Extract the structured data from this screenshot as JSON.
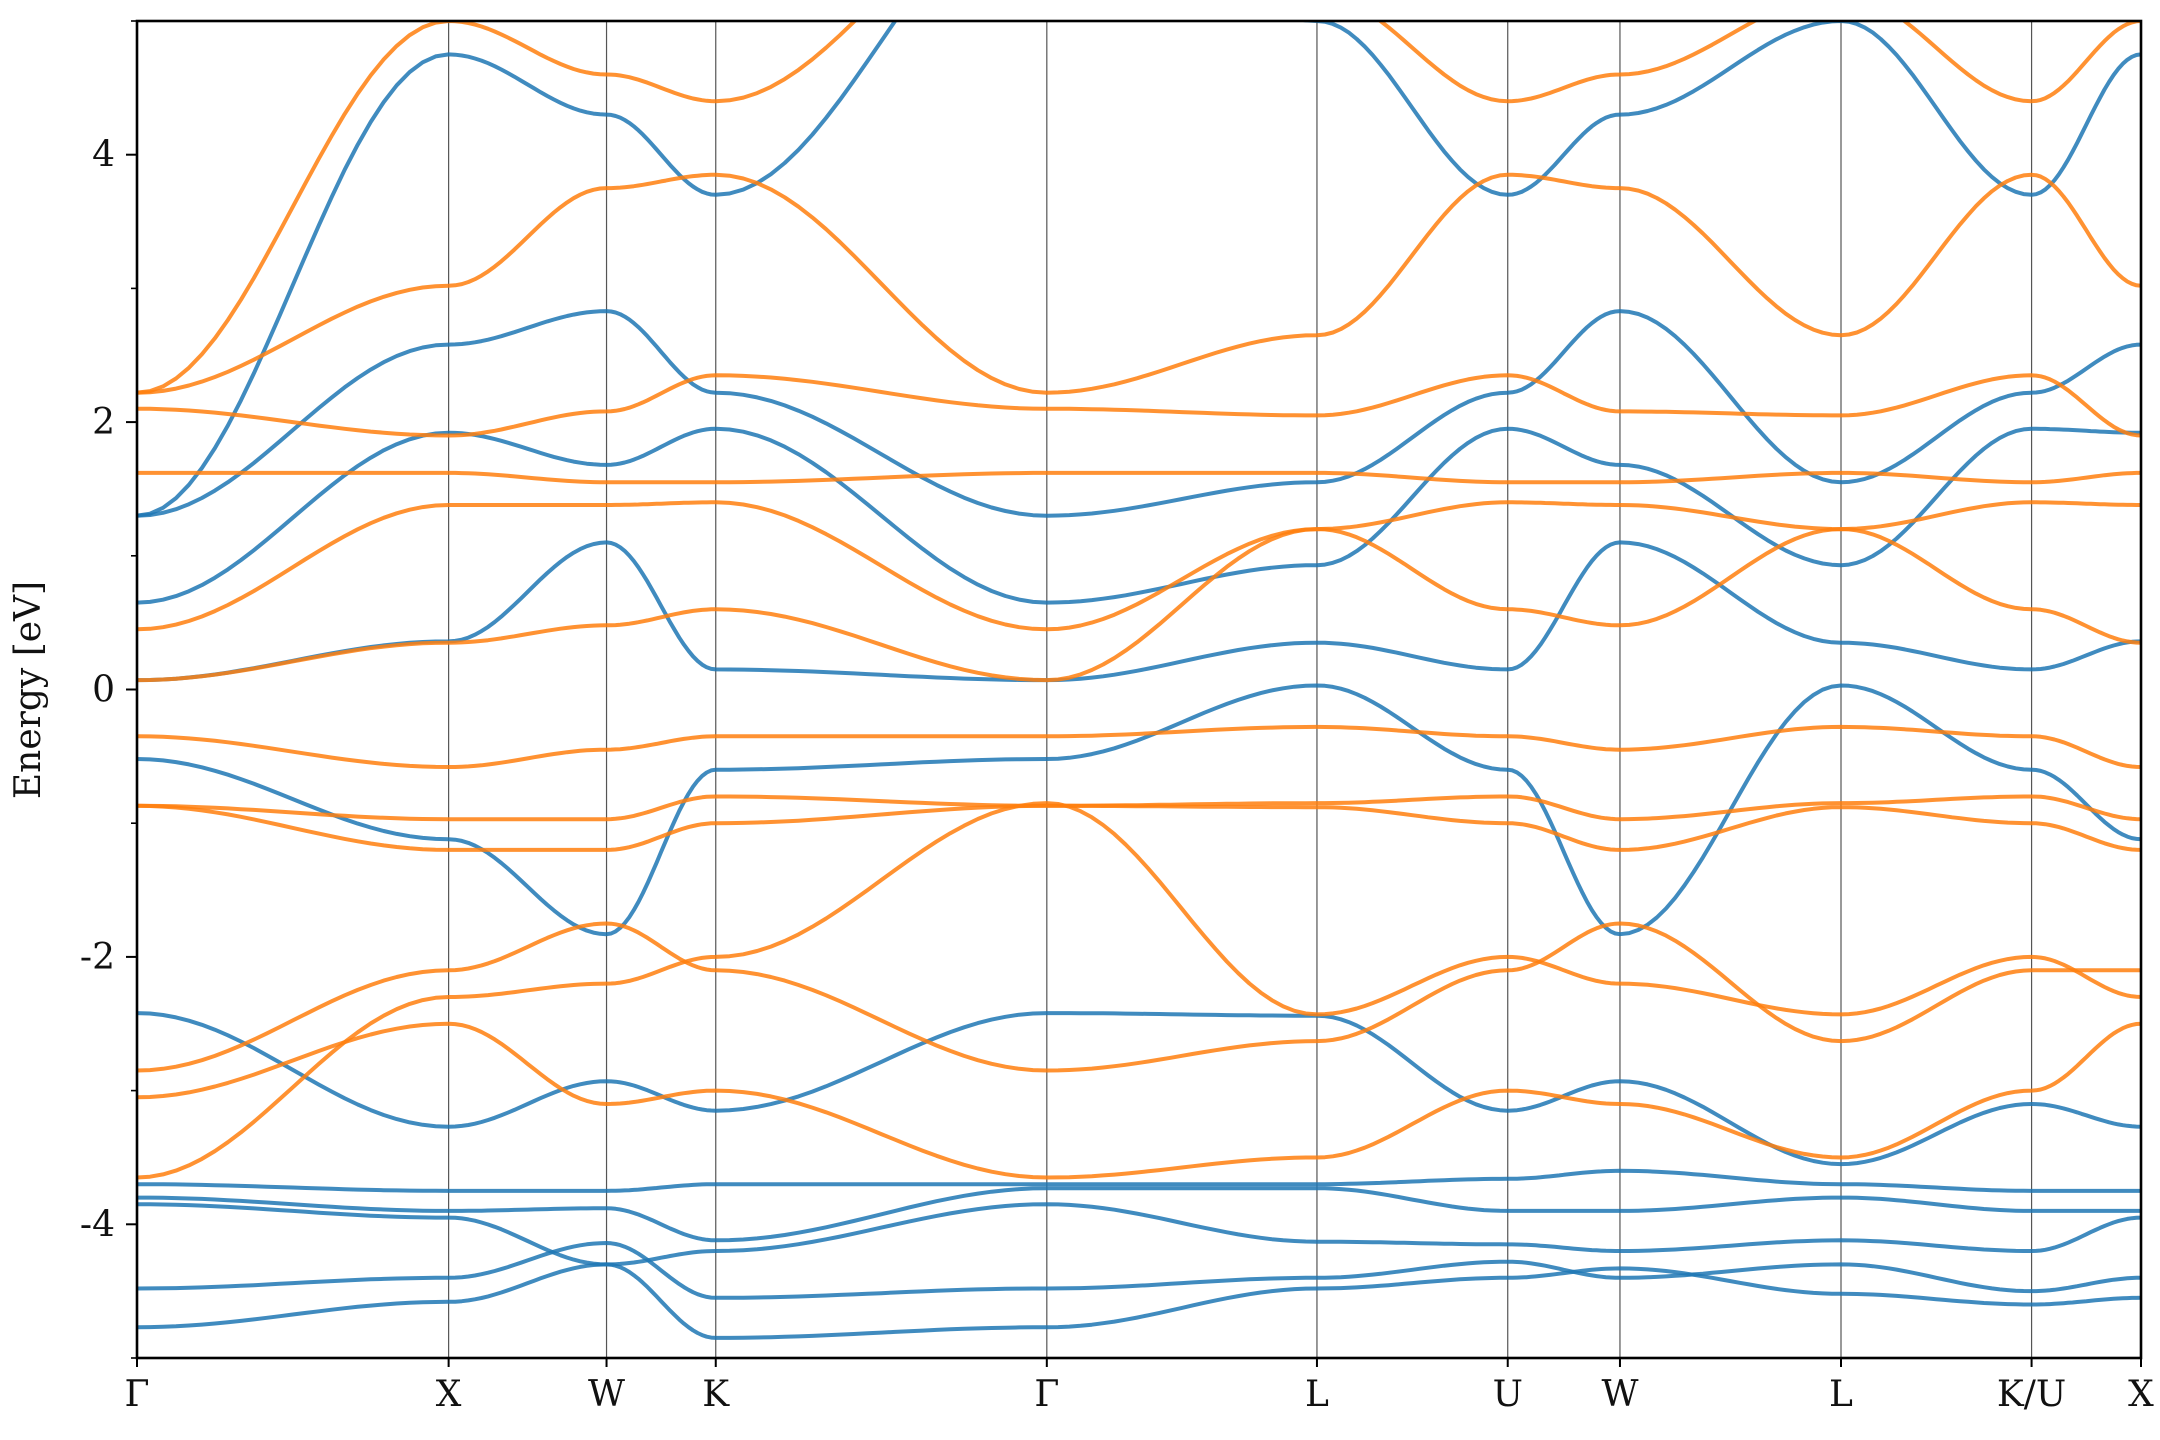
{
  "chart_data": {
    "type": "line",
    "title": "",
    "xlabel": "",
    "ylabel": "Energy [eV]",
    "ylim": [
      -5,
      5
    ],
    "x_range": [
      0,
      1
    ],
    "grid": false,
    "legend": "none",
    "kpath": [
      {
        "label": "Γ",
        "x": 0.0
      },
      {
        "label": "X",
        "x": 0.1555
      },
      {
        "label": "W",
        "x": 0.2343
      },
      {
        "label": "K",
        "x": 0.2888
      },
      {
        "label": "Γ",
        "x": 0.454
      },
      {
        "label": "L",
        "x": 0.5888
      },
      {
        "label": "U",
        "x": 0.684
      },
      {
        "label": "W",
        "x": 0.74
      },
      {
        "label": "L",
        "x": 0.8503
      },
      {
        "label": "K/U",
        "x": 0.9454
      },
      {
        "label": "X",
        "x": 1.0
      }
    ],
    "yticks": [
      {
        "label": "-4",
        "value": -4
      },
      {
        "label": "-2",
        "value": -2
      },
      {
        "label": "0",
        "value": 0
      },
      {
        "label": "2",
        "value": 2
      },
      {
        "label": "4",
        "value": 4
      }
    ],
    "series": [
      {
        "color": "#1f77b4",
        "bands": [
          [
            [
              0,
              -4.77
            ],
            [
              0.1555,
              -4.58
            ],
            [
              0.2343,
              -4.3
            ],
            [
              0.2888,
              -4.85
            ],
            [
              0.454,
              -4.77
            ],
            [
              0.5888,
              -4.48
            ],
            [
              0.684,
              -4.4
            ],
            [
              0.74,
              -4.33
            ],
            [
              0.8503,
              -4.52
            ],
            [
              0.9454,
              -4.6
            ],
            [
              1.0,
              -4.55
            ]
          ],
          [
            [
              0,
              -4.48
            ],
            [
              0.1555,
              -4.4
            ],
            [
              0.2343,
              -4.14
            ],
            [
              0.2888,
              -4.55
            ],
            [
              0.454,
              -4.48
            ],
            [
              0.5888,
              -4.4
            ],
            [
              0.684,
              -4.28
            ],
            [
              0.74,
              -4.4
            ],
            [
              0.8503,
              -4.3
            ],
            [
              0.9454,
              -4.5
            ],
            [
              1.0,
              -4.4
            ]
          ],
          [
            [
              0,
              -3.85
            ],
            [
              0.1555,
              -3.95
            ],
            [
              0.2343,
              -4.3
            ],
            [
              0.2888,
              -4.2
            ],
            [
              0.454,
              -3.85
            ],
            [
              0.5888,
              -4.13
            ],
            [
              0.684,
              -4.15
            ],
            [
              0.74,
              -4.2
            ],
            [
              0.8503,
              -4.12
            ],
            [
              0.9454,
              -4.2
            ],
            [
              1.0,
              -3.95
            ]
          ],
          [
            [
              0,
              -3.8
            ],
            [
              0.1555,
              -3.9
            ],
            [
              0.2343,
              -3.88
            ],
            [
              0.2888,
              -4.12
            ],
            [
              0.454,
              -3.73
            ],
            [
              0.5888,
              -3.73
            ],
            [
              0.684,
              -3.9
            ],
            [
              0.74,
              -3.9
            ],
            [
              0.8503,
              -3.8
            ],
            [
              0.9454,
              -3.9
            ],
            [
              1.0,
              -3.9
            ]
          ],
          [
            [
              0,
              -3.7
            ],
            [
              0.1555,
              -3.75
            ],
            [
              0.2343,
              -3.75
            ],
            [
              0.2888,
              -3.7
            ],
            [
              0.454,
              -3.7
            ],
            [
              0.5888,
              -3.7
            ],
            [
              0.684,
              -3.66
            ],
            [
              0.74,
              -3.6
            ],
            [
              0.8503,
              -3.7
            ],
            [
              0.9454,
              -3.75
            ],
            [
              1.0,
              -3.75
            ]
          ],
          [
            [
              0,
              -2.42
            ],
            [
              0.1555,
              -3.27
            ],
            [
              0.2343,
              -2.93
            ],
            [
              0.2888,
              -3.15
            ],
            [
              0.454,
              -2.42
            ],
            [
              0.5888,
              -2.44
            ],
            [
              0.684,
              -3.15
            ],
            [
              0.74,
              -2.93
            ],
            [
              0.8503,
              -3.55
            ],
            [
              0.9454,
              -3.1
            ],
            [
              1.0,
              -3.27
            ]
          ],
          [
            [
              0,
              -0.52
            ],
            [
              0.1555,
              -1.12
            ],
            [
              0.2343,
              -1.83
            ],
            [
              0.2888,
              -0.6
            ],
            [
              0.454,
              -0.52
            ],
            [
              0.5888,
              0.03
            ],
            [
              0.684,
              -0.6
            ],
            [
              0.74,
              -1.83
            ],
            [
              0.8503,
              0.03
            ],
            [
              0.9454,
              -0.6
            ],
            [
              1.0,
              -1.12
            ]
          ],
          [
            [
              0,
              0.07
            ],
            [
              0.1555,
              0.36
            ],
            [
              0.2343,
              1.1
            ],
            [
              0.2888,
              0.15
            ],
            [
              0.454,
              0.07
            ],
            [
              0.5888,
              0.35
            ],
            [
              0.684,
              0.15
            ],
            [
              0.74,
              1.1
            ],
            [
              0.8503,
              0.35
            ],
            [
              0.9454,
              0.15
            ],
            [
              1.0,
              0.36
            ]
          ],
          [
            [
              0,
              0.65
            ],
            [
              0.1555,
              1.92
            ],
            [
              0.2343,
              1.68
            ],
            [
              0.2888,
              1.95
            ],
            [
              0.454,
              0.65
            ],
            [
              0.5888,
              0.93
            ],
            [
              0.684,
              1.95
            ],
            [
              0.74,
              1.68
            ],
            [
              0.8503,
              0.93
            ],
            [
              0.9454,
              1.95
            ],
            [
              1.0,
              1.92
            ]
          ],
          [
            [
              0,
              1.3
            ],
            [
              0.1555,
              2.58
            ],
            [
              0.2343,
              2.83
            ],
            [
              0.2888,
              2.22
            ],
            [
              0.454,
              1.3
            ],
            [
              0.5888,
              1.55
            ],
            [
              0.684,
              2.22
            ],
            [
              0.74,
              2.83
            ],
            [
              0.8503,
              1.55
            ],
            [
              0.9454,
              2.22
            ],
            [
              1.0,
              2.58
            ]
          ],
          [
            [
              0,
              1.3
            ],
            [
              0.1555,
              4.75
            ],
            [
              0.2343,
              4.3
            ],
            [
              0.2888,
              3.7
            ],
            [
              0.454,
              6.0
            ],
            [
              0.5888,
              5.0
            ],
            [
              0.684,
              3.7
            ],
            [
              0.74,
              4.3
            ],
            [
              0.8503,
              5.0
            ],
            [
              0.9454,
              3.7
            ],
            [
              1.0,
              4.75
            ]
          ]
        ]
      },
      {
        "color": "#ff7f0e",
        "bands": [
          [
            [
              0,
              -3.65
            ],
            [
              0.1555,
              -2.3
            ],
            [
              0.2343,
              -2.2
            ],
            [
              0.2888,
              -2.0
            ],
            [
              0.454,
              -0.85
            ],
            [
              0.5888,
              -2.43
            ],
            [
              0.684,
              -2.0
            ],
            [
              0.74,
              -2.2
            ],
            [
              0.8503,
              -2.43
            ],
            [
              0.9454,
              -2.0
            ],
            [
              1.0,
              -2.3
            ]
          ],
          [
            [
              0,
              -3.05
            ],
            [
              0.1555,
              -2.5
            ],
            [
              0.2343,
              -3.1
            ],
            [
              0.2888,
              -3.0
            ],
            [
              0.454,
              -3.65
            ],
            [
              0.5888,
              -3.5
            ],
            [
              0.684,
              -3.0
            ],
            [
              0.74,
              -3.1
            ],
            [
              0.8503,
              -3.5
            ],
            [
              0.9454,
              -3.0
            ],
            [
              1.0,
              -2.5
            ]
          ],
          [
            [
              0,
              -2.85
            ],
            [
              0.1555,
              -2.1
            ],
            [
              0.2343,
              -1.75
            ],
            [
              0.2888,
              -2.1
            ],
            [
              0.454,
              -2.85
            ],
            [
              0.5888,
              -2.63
            ],
            [
              0.684,
              -2.1
            ],
            [
              0.74,
              -1.75
            ],
            [
              0.8503,
              -2.63
            ],
            [
              0.9454,
              -2.1
            ],
            [
              1.0,
              -2.1
            ]
          ],
          [
            [
              0,
              -0.87
            ],
            [
              0.1555,
              -1.2
            ],
            [
              0.2343,
              -1.2
            ],
            [
              0.2888,
              -1.0
            ],
            [
              0.454,
              -0.87
            ],
            [
              0.5888,
              -0.88
            ],
            [
              0.684,
              -1.0
            ],
            [
              0.74,
              -1.2
            ],
            [
              0.8503,
              -0.88
            ],
            [
              0.9454,
              -1.0
            ],
            [
              1.0,
              -1.2
            ]
          ],
          [
            [
              0,
              -0.87
            ],
            [
              0.1555,
              -0.97
            ],
            [
              0.2343,
              -0.97
            ],
            [
              0.2888,
              -0.8
            ],
            [
              0.454,
              -0.87
            ],
            [
              0.5888,
              -0.85
            ],
            [
              0.684,
              -0.8
            ],
            [
              0.74,
              -0.97
            ],
            [
              0.8503,
              -0.85
            ],
            [
              0.9454,
              -0.8
            ],
            [
              1.0,
              -0.97
            ]
          ],
          [
            [
              0,
              -0.35
            ],
            [
              0.1555,
              -0.58
            ],
            [
              0.2343,
              -0.45
            ],
            [
              0.2888,
              -0.35
            ],
            [
              0.454,
              -0.35
            ],
            [
              0.5888,
              -0.28
            ],
            [
              0.684,
              -0.35
            ],
            [
              0.74,
              -0.45
            ],
            [
              0.8503,
              -0.28
            ],
            [
              0.9454,
              -0.35
            ],
            [
              1.0,
              -0.58
            ]
          ],
          [
            [
              0,
              0.07
            ],
            [
              0.1555,
              0.35
            ],
            [
              0.2343,
              0.48
            ],
            [
              0.2888,
              0.6
            ],
            [
              0.454,
              0.07
            ],
            [
              0.5888,
              1.2
            ],
            [
              0.684,
              0.6
            ],
            [
              0.74,
              0.48
            ],
            [
              0.8503,
              1.2
            ],
            [
              0.9454,
              0.6
            ],
            [
              1.0,
              0.35
            ]
          ],
          [
            [
              0,
              0.45
            ],
            [
              0.1555,
              1.38
            ],
            [
              0.2343,
              1.38
            ],
            [
              0.2888,
              1.4
            ],
            [
              0.454,
              0.45
            ],
            [
              0.5888,
              1.2
            ],
            [
              0.684,
              1.4
            ],
            [
              0.74,
              1.38
            ],
            [
              0.8503,
              1.2
            ],
            [
              0.9454,
              1.4
            ],
            [
              1.0,
              1.38
            ]
          ],
          [
            [
              0,
              1.62
            ],
            [
              0.1555,
              1.62
            ],
            [
              0.2343,
              1.55
            ],
            [
              0.2888,
              1.55
            ],
            [
              0.454,
              1.62
            ],
            [
              0.5888,
              1.62
            ],
            [
              0.684,
              1.55
            ],
            [
              0.74,
              1.55
            ],
            [
              0.8503,
              1.62
            ],
            [
              0.9454,
              1.55
            ],
            [
              1.0,
              1.62
            ]
          ],
          [
            [
              0,
              2.1
            ],
            [
              0.1555,
              1.9
            ],
            [
              0.2343,
              2.08
            ],
            [
              0.2888,
              2.35
            ],
            [
              0.454,
              2.1
            ],
            [
              0.5888,
              2.05
            ],
            [
              0.684,
              2.35
            ],
            [
              0.74,
              2.08
            ],
            [
              0.8503,
              2.05
            ],
            [
              0.9454,
              2.35
            ],
            [
              1.0,
              1.9
            ]
          ],
          [
            [
              0,
              2.22
            ],
            [
              0.1555,
              3.02
            ],
            [
              0.2343,
              3.75
            ],
            [
              0.2888,
              3.85
            ],
            [
              0.454,
              2.22
            ],
            [
              0.5888,
              2.65
            ],
            [
              0.684,
              3.85
            ],
            [
              0.74,
              3.75
            ],
            [
              0.8503,
              2.65
            ],
            [
              0.9454,
              3.85
            ],
            [
              1.0,
              3.02
            ]
          ],
          [
            [
              0,
              2.22
            ],
            [
              0.1555,
              5.0
            ],
            [
              0.2343,
              4.6
            ],
            [
              0.2888,
              4.4
            ],
            [
              0.454,
              6.0
            ],
            [
              0.5888,
              5.2
            ],
            [
              0.684,
              4.4
            ],
            [
              0.74,
              4.6
            ],
            [
              0.8503,
              5.2
            ],
            [
              0.9454,
              4.4
            ],
            [
              1.0,
              5.0
            ]
          ]
        ]
      }
    ]
  }
}
